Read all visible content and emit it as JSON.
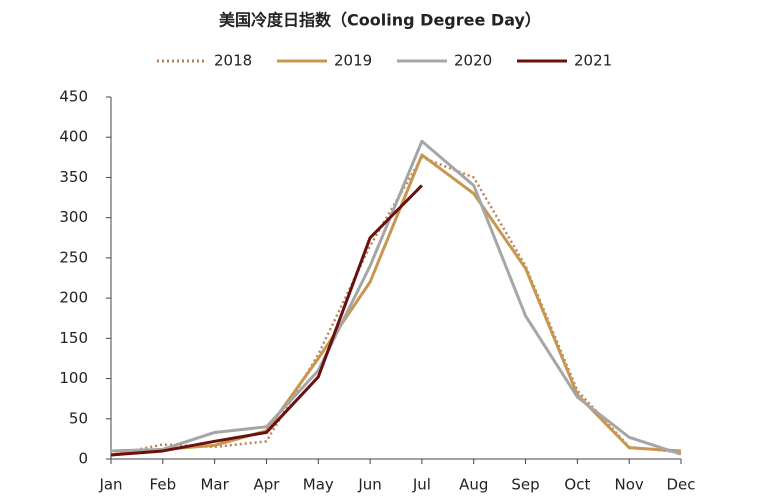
{
  "chart_data": {
    "type": "line",
    "title": "美国冷度日指数（Cooling Degree Day）",
    "categories": [
      "Jan",
      "Feb",
      "Mar",
      "Apr",
      "May",
      "Jun",
      "Jul",
      "Aug",
      "Sep",
      "Oct",
      "Nov",
      "Dec"
    ],
    "series": [
      {
        "name": "2018",
        "color": "#b9805a",
        "style": "dotted",
        "values": [
          5,
          18,
          15,
          22,
          130,
          265,
          375,
          350,
          240,
          85,
          15,
          8
        ]
      },
      {
        "name": "2019",
        "color": "#c8964f",
        "style": "solid",
        "values": [
          5,
          12,
          17,
          35,
          125,
          220,
          378,
          330,
          237,
          80,
          14,
          10
        ]
      },
      {
        "name": "2020",
        "color": "#a6a6a6",
        "style": "solid",
        "values": [
          10,
          12,
          33,
          40,
          110,
          240,
          395,
          340,
          178,
          77,
          27,
          6
        ]
      },
      {
        "name": "2021",
        "color": "#6b0f0f",
        "style": "solid",
        "values": [
          5,
          10,
          22,
          33,
          102,
          275,
          340,
          null,
          null,
          null,
          null,
          null
        ]
      }
    ],
    "ylim": [
      0,
      450
    ],
    "yticks": [
      0,
      50,
      100,
      150,
      200,
      250,
      300,
      350,
      400,
      450
    ],
    "grid": false,
    "legend": "top"
  }
}
